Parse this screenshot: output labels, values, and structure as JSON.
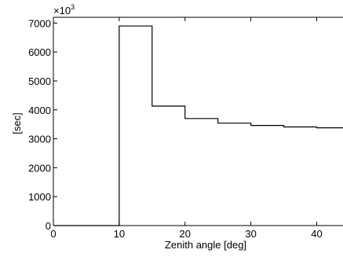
{
  "chart_data": {
    "type": "step",
    "title": "",
    "xlabel": "Zenith angle [deg]",
    "ylabel": "[sec]",
    "y_multiplier_label": "×10",
    "y_multiplier_exponent": "3",
    "xlim": [
      0,
      44
    ],
    "ylim": [
      0,
      7200
    ],
    "x_ticks": [
      0,
      10,
      20,
      30,
      40
    ],
    "y_ticks": [
      0,
      1000,
      2000,
      3000,
      4000,
      5000,
      6000,
      7000
    ],
    "grid": false,
    "bins": [
      {
        "x0": 0,
        "x1": 10,
        "y": 0
      },
      {
        "x0": 10,
        "x1": 15,
        "y": 6900
      },
      {
        "x0": 15,
        "x1": 20,
        "y": 4130
      },
      {
        "x0": 20,
        "x1": 25,
        "y": 3700
      },
      {
        "x0": 25,
        "x1": 30,
        "y": 3540
      },
      {
        "x0": 30,
        "x1": 35,
        "y": 3460
      },
      {
        "x0": 35,
        "x1": 40,
        "y": 3410
      },
      {
        "x0": 40,
        "x1": 44,
        "y": 3380
      }
    ]
  }
}
